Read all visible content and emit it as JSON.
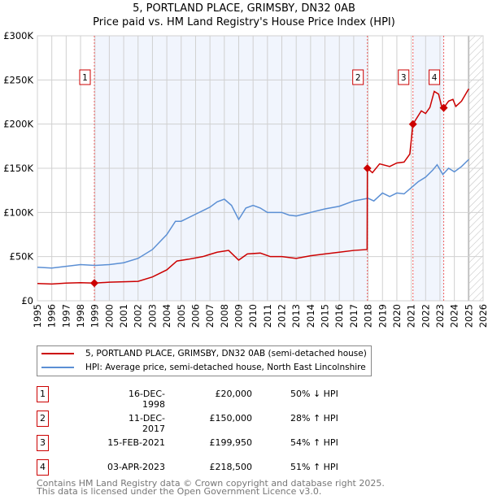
{
  "chart_data": {
    "type": "line",
    "title": "5, PORTLAND PLACE, GRIMSBY, DN32 0AB",
    "subtitle": "Price paid vs. HM Land Registry's House Price Index (HPI)",
    "xlim": [
      1995,
      2026
    ],
    "ylim": [
      0,
      300000
    ],
    "x_ticks": [
      "1995",
      "1996",
      "1997",
      "1998",
      "1999",
      "2000",
      "2001",
      "2002",
      "2003",
      "2004",
      "2005",
      "2006",
      "2007",
      "2008",
      "2009",
      "2010",
      "2011",
      "2012",
      "2013",
      "2014",
      "2015",
      "2016",
      "2017",
      "2018",
      "2019",
      "2020",
      "2021",
      "2022",
      "2023",
      "2024",
      "2025",
      "2026"
    ],
    "y_ticks": [
      {
        "v": 0,
        "l": "£0"
      },
      {
        "v": 50000,
        "l": "£50K"
      },
      {
        "v": 100000,
        "l": "£100K"
      },
      {
        "v": 150000,
        "l": "£150K"
      },
      {
        "v": 200000,
        "l": "£200K"
      },
      {
        "v": 250000,
        "l": "£250K"
      },
      {
        "v": 300000,
        "l": "£300K"
      }
    ],
    "grid": true,
    "forecast_hatch_from": 2025,
    "series": [
      {
        "name": "5, PORTLAND PLACE, GRIMSBY, DN32 0AB (semi-detached house)",
        "color": "#cc0000",
        "x": [
          1995,
          1996,
          1997,
          1998,
          1998.96,
          2000,
          2001,
          2002,
          2003,
          2004,
          2004.7,
          2005.5,
          2006.5,
          2007.5,
          2008.3,
          2009,
          2009.6,
          2010.5,
          2011.2,
          2012,
          2013,
          2014,
          2015,
          2016,
          2017,
          2017.93,
          2017.95,
          2018.3,
          2018.8,
          2019.5,
          2020,
          2020.5,
          2020.9,
          2021.12,
          2021.7,
          2022,
          2022.3,
          2022.6,
          2022.9,
          2023.1,
          2023.26,
          2023.6,
          2023.9,
          2024.1,
          2024.5,
          2025
        ],
        "y": [
          19500,
          19000,
          20000,
          20500,
          20000,
          21000,
          21500,
          22000,
          27000,
          35000,
          45000,
          47000,
          50000,
          55000,
          57000,
          46000,
          53000,
          54000,
          50000,
          50000,
          48000,
          51000,
          53000,
          55000,
          57000,
          58000,
          150000,
          145000,
          155000,
          152000,
          156000,
          157000,
          166000,
          199950,
          215000,
          212000,
          219000,
          237000,
          234000,
          221000,
          218500,
          226000,
          228000,
          220000,
          226000,
          240000
        ]
      },
      {
        "name": "HPI: Average price, semi-detached house, North East Lincolnshire",
        "color": "#5b8fd4",
        "x": [
          1995,
          1996,
          1997,
          1998,
          1999,
          2000,
          2001,
          2002,
          2003,
          2004,
          2004.6,
          2005,
          2006,
          2007,
          2007.5,
          2008,
          2008.5,
          2009,
          2009.5,
          2010,
          2010.5,
          2011,
          2012,
          2012.5,
          2013,
          2014,
          2015,
          2016,
          2017,
          2018,
          2018.4,
          2019,
          2019.5,
          2020,
          2020.5,
          2021,
          2021.5,
          2022,
          2022.5,
          2022.8,
          2023.2,
          2023.6,
          2024,
          2024.5,
          2025
        ],
        "y": [
          38000,
          37000,
          39000,
          41000,
          40000,
          41000,
          43000,
          48000,
          58000,
          75000,
          90000,
          90000,
          98000,
          106000,
          112000,
          115000,
          108000,
          92000,
          105000,
          108000,
          105000,
          100000,
          100000,
          97000,
          96000,
          100000,
          104000,
          107000,
          113000,
          116000,
          113000,
          122000,
          118000,
          122000,
          121000,
          128000,
          135000,
          140000,
          148000,
          154000,
          143000,
          150000,
          146000,
          152000,
          160000
        ]
      }
    ],
    "shaded_ranges": [
      [
        1998.96,
        2017.95
      ],
      [
        2021.12,
        2023.26
      ]
    ],
    "sales": [
      {
        "n": "1",
        "x": 1998.96,
        "y": 20000,
        "date": "16-DEC-1998",
        "price": "£20,000",
        "hpi": "50% ↓ HPI"
      },
      {
        "n": "2",
        "x": 2017.95,
        "y": 150000,
        "date": "11-DEC-2017",
        "price": "£150,000",
        "hpi": "28% ↑ HPI"
      },
      {
        "n": "3",
        "x": 2021.12,
        "y": 199950,
        "date": "15-FEB-2021",
        "price": "£199,950",
        "hpi": "54% ↑ HPI"
      },
      {
        "n": "4",
        "x": 2023.26,
        "y": 218500,
        "date": "03-APR-2023",
        "price": "£218,500",
        "hpi": "51% ↑ HPI"
      }
    ]
  },
  "footer": {
    "line1": "Contains HM Land Registry data © Crown copyright and database right 2025.",
    "line2": "This data is licensed under the Open Government Licence v3.0."
  }
}
